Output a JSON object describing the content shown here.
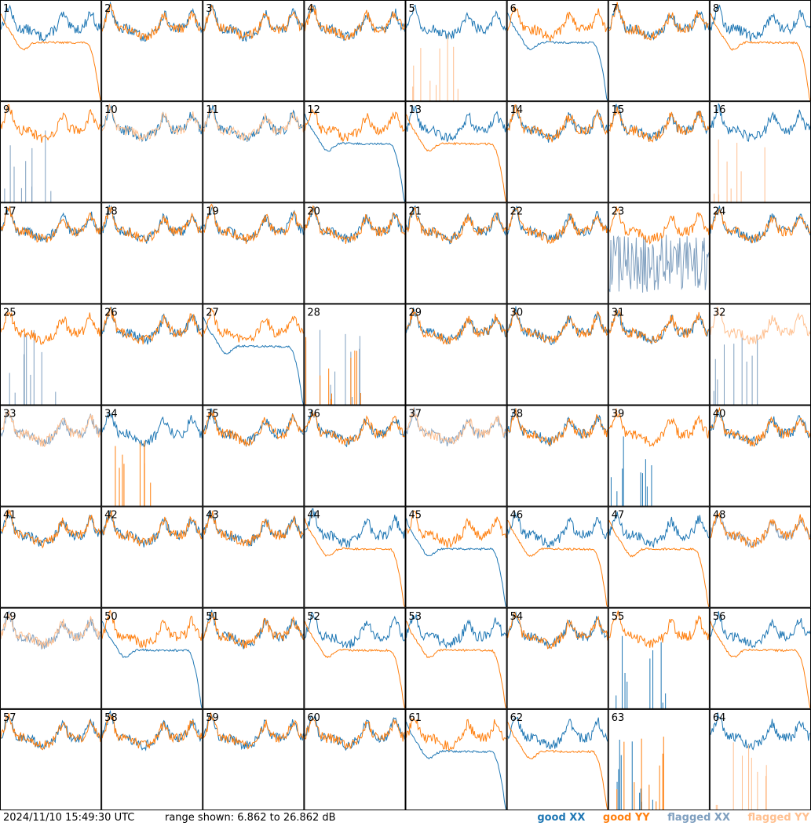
{
  "footer": {
    "timestamp": "2024/11/10 15:49:30 UTC",
    "range_text": "range shown: 6.862 to 26.862 dB"
  },
  "legend": {
    "good_xx": "good XX",
    "good_yy": "good YY",
    "flagged_xx": "flagged XX",
    "flagged_yy": "flagged YY"
  },
  "colors": {
    "good_xx": "#1f77b4",
    "good_yy": "#ff7f0e",
    "flagged_xx": "#7f9fbf",
    "flagged_yy": "#ffc090"
  },
  "chart_data": {
    "type": "line",
    "grid_rows": 8,
    "grid_cols": 8,
    "ylim": [
      6.862,
      26.862
    ],
    "panels": [
      {
        "label": "1",
        "xx": "good",
        "yy": "good",
        "xx_shape": "bandpass",
        "yy_shape": "rolloff"
      },
      {
        "label": "2",
        "xx": "good",
        "yy": "good",
        "xx_shape": "bandpass",
        "yy_shape": "bandpass"
      },
      {
        "label": "3",
        "xx": "good",
        "yy": "good",
        "xx_shape": "bandpass",
        "yy_shape": "bandpass"
      },
      {
        "label": "4",
        "xx": "good",
        "yy": "good",
        "xx_shape": "bandpass",
        "yy_shape": "bandpass"
      },
      {
        "label": "5",
        "xx": "good",
        "yy": "flagged",
        "xx_shape": "bandpass",
        "yy_shape": "spikes"
      },
      {
        "label": "6",
        "xx": "good",
        "yy": "good",
        "xx_shape": "rolloff",
        "yy_shape": "bandpass"
      },
      {
        "label": "7",
        "xx": "good",
        "yy": "good",
        "xx_shape": "bandpass",
        "yy_shape": "bandpass"
      },
      {
        "label": "8",
        "xx": "good",
        "yy": "good",
        "xx_shape": "bandpass",
        "yy_shape": "rolloff"
      },
      {
        "label": "9",
        "xx": "flagged",
        "yy": "good",
        "xx_shape": "spikes",
        "yy_shape": "bandpass"
      },
      {
        "label": "10",
        "xx": "good",
        "yy": "flagged",
        "xx_shape": "bandpass",
        "yy_shape": "bandpass"
      },
      {
        "label": "11",
        "xx": "good",
        "yy": "flagged",
        "xx_shape": "bandpass",
        "yy_shape": "bandpass"
      },
      {
        "label": "12",
        "xx": "good",
        "yy": "good",
        "xx_shape": "rolloff",
        "yy_shape": "bandpass"
      },
      {
        "label": "13",
        "xx": "good",
        "yy": "good",
        "xx_shape": "bandpass",
        "yy_shape": "rolloff"
      },
      {
        "label": "14",
        "xx": "good",
        "yy": "good",
        "xx_shape": "bandpass",
        "yy_shape": "bandpass"
      },
      {
        "label": "15",
        "xx": "good",
        "yy": "good",
        "xx_shape": "bandpass",
        "yy_shape": "bandpass"
      },
      {
        "label": "16",
        "xx": "good",
        "yy": "flagged",
        "xx_shape": "bandpass",
        "yy_shape": "spikes"
      },
      {
        "label": "17",
        "xx": "good",
        "yy": "good",
        "xx_shape": "bandpass",
        "yy_shape": "bandpass"
      },
      {
        "label": "18",
        "xx": "good",
        "yy": "good",
        "xx_shape": "bandpass",
        "yy_shape": "bandpass"
      },
      {
        "label": "19",
        "xx": "good",
        "yy": "good",
        "xx_shape": "bandpass",
        "yy_shape": "bandpass"
      },
      {
        "label": "20",
        "xx": "good",
        "yy": "good",
        "xx_shape": "bandpass",
        "yy_shape": "bandpass"
      },
      {
        "label": "21",
        "xx": "good",
        "yy": "good",
        "xx_shape": "bandpass",
        "yy_shape": "bandpass"
      },
      {
        "label": "22",
        "xx": "good",
        "yy": "good",
        "xx_shape": "bandpass",
        "yy_shape": "bandpass"
      },
      {
        "label": "23",
        "xx": "flagged",
        "yy": "good",
        "xx_shape": "noise",
        "yy_shape": "bandpass"
      },
      {
        "label": "24",
        "xx": "good",
        "yy": "good",
        "xx_shape": "bandpass",
        "yy_shape": "bandpass"
      },
      {
        "label": "25",
        "xx": "flagged",
        "yy": "good",
        "xx_shape": "spikes",
        "yy_shape": "bandpass"
      },
      {
        "label": "26",
        "xx": "good",
        "yy": "good",
        "xx_shape": "bandpass",
        "yy_shape": "bandpass"
      },
      {
        "label": "27",
        "xx": "good",
        "yy": "good",
        "xx_shape": "rolloff",
        "yy_shape": "bandpass"
      },
      {
        "label": "28",
        "xx": "flagged",
        "yy": "good",
        "xx_shape": "spikes",
        "yy_shape": "spikes"
      },
      {
        "label": "29",
        "xx": "good",
        "yy": "good",
        "xx_shape": "bandpass",
        "yy_shape": "bandpass"
      },
      {
        "label": "30",
        "xx": "good",
        "yy": "good",
        "xx_shape": "bandpass",
        "yy_shape": "bandpass"
      },
      {
        "label": "31",
        "xx": "good",
        "yy": "good",
        "xx_shape": "bandpass",
        "yy_shape": "bandpass"
      },
      {
        "label": "32",
        "xx": "flagged",
        "yy": "flagged",
        "xx_shape": "spikes",
        "yy_shape": "bandpass"
      },
      {
        "label": "33",
        "xx": "flagged",
        "yy": "flagged",
        "xx_shape": "bandpass",
        "yy_shape": "bandpass"
      },
      {
        "label": "34",
        "xx": "good",
        "yy": "good",
        "xx_shape": "bandpass",
        "yy_shape": "spikes"
      },
      {
        "label": "35",
        "xx": "good",
        "yy": "good",
        "xx_shape": "bandpass",
        "yy_shape": "bandpass"
      },
      {
        "label": "36",
        "xx": "good",
        "yy": "good",
        "xx_shape": "bandpass",
        "yy_shape": "bandpass"
      },
      {
        "label": "37",
        "xx": "flagged",
        "yy": "flagged",
        "xx_shape": "bandpass",
        "yy_shape": "bandpass"
      },
      {
        "label": "38",
        "xx": "good",
        "yy": "good",
        "xx_shape": "bandpass",
        "yy_shape": "bandpass"
      },
      {
        "label": "39",
        "xx": "good",
        "yy": "good",
        "xx_shape": "spikes",
        "yy_shape": "bandpass"
      },
      {
        "label": "40",
        "xx": "good",
        "yy": "good",
        "xx_shape": "bandpass",
        "yy_shape": "bandpass"
      },
      {
        "label": "41",
        "xx": "good",
        "yy": "good",
        "xx_shape": "bandpass",
        "yy_shape": "bandpass"
      },
      {
        "label": "42",
        "xx": "good",
        "yy": "good",
        "xx_shape": "bandpass",
        "yy_shape": "bandpass"
      },
      {
        "label": "43",
        "xx": "good",
        "yy": "good",
        "xx_shape": "bandpass",
        "yy_shape": "bandpass"
      },
      {
        "label": "44",
        "xx": "good",
        "yy": "good",
        "xx_shape": "bandpass",
        "yy_shape": "rolloff"
      },
      {
        "label": "45",
        "xx": "good",
        "yy": "good",
        "xx_shape": "rolloff",
        "yy_shape": "bandpass"
      },
      {
        "label": "46",
        "xx": "good",
        "yy": "good",
        "xx_shape": "bandpass",
        "yy_shape": "rolloff"
      },
      {
        "label": "47",
        "xx": "good",
        "yy": "good",
        "xx_shape": "bandpass",
        "yy_shape": "rolloff"
      },
      {
        "label": "48",
        "xx": "flagged",
        "yy": "good",
        "xx_shape": "bandpass",
        "yy_shape": "bandpass"
      },
      {
        "label": "49",
        "xx": "flagged",
        "yy": "flagged",
        "xx_shape": "bandpass",
        "yy_shape": "bandpass"
      },
      {
        "label": "50",
        "xx": "good",
        "yy": "good",
        "xx_shape": "rolloff",
        "yy_shape": "bandpass"
      },
      {
        "label": "51",
        "xx": "good",
        "yy": "good",
        "xx_shape": "bandpass",
        "yy_shape": "bandpass"
      },
      {
        "label": "52",
        "xx": "good",
        "yy": "good",
        "xx_shape": "bandpass",
        "yy_shape": "rolloff"
      },
      {
        "label": "53",
        "xx": "good",
        "yy": "good",
        "xx_shape": "bandpass",
        "yy_shape": "rolloff"
      },
      {
        "label": "54",
        "xx": "good",
        "yy": "good",
        "xx_shape": "bandpass",
        "yy_shape": "bandpass"
      },
      {
        "label": "55",
        "xx": "good",
        "yy": "good",
        "xx_shape": "spikes",
        "yy_shape": "bandpass"
      },
      {
        "label": "56",
        "xx": "good",
        "yy": "good",
        "xx_shape": "bandpass",
        "yy_shape": "rolloff"
      },
      {
        "label": "57",
        "xx": "good",
        "yy": "good",
        "xx_shape": "bandpass",
        "yy_shape": "bandpass"
      },
      {
        "label": "58",
        "xx": "good",
        "yy": "good",
        "xx_shape": "bandpass",
        "yy_shape": "bandpass"
      },
      {
        "label": "59",
        "xx": "good",
        "yy": "good",
        "xx_shape": "bandpass",
        "yy_shape": "bandpass"
      },
      {
        "label": "60",
        "xx": "good",
        "yy": "good",
        "xx_shape": "bandpass",
        "yy_shape": "bandpass"
      },
      {
        "label": "61",
        "xx": "good",
        "yy": "good",
        "xx_shape": "rolloff",
        "yy_shape": "bandpass"
      },
      {
        "label": "62",
        "xx": "good",
        "yy": "good",
        "xx_shape": "bandpass",
        "yy_shape": "rolloff"
      },
      {
        "label": "63",
        "xx": "good",
        "yy": "good",
        "xx_shape": "spikes",
        "yy_shape": "spikes"
      },
      {
        "label": "64",
        "xx": "good",
        "yy": "flagged",
        "xx_shape": "bandpass",
        "yy_shape": "spikes"
      }
    ]
  }
}
